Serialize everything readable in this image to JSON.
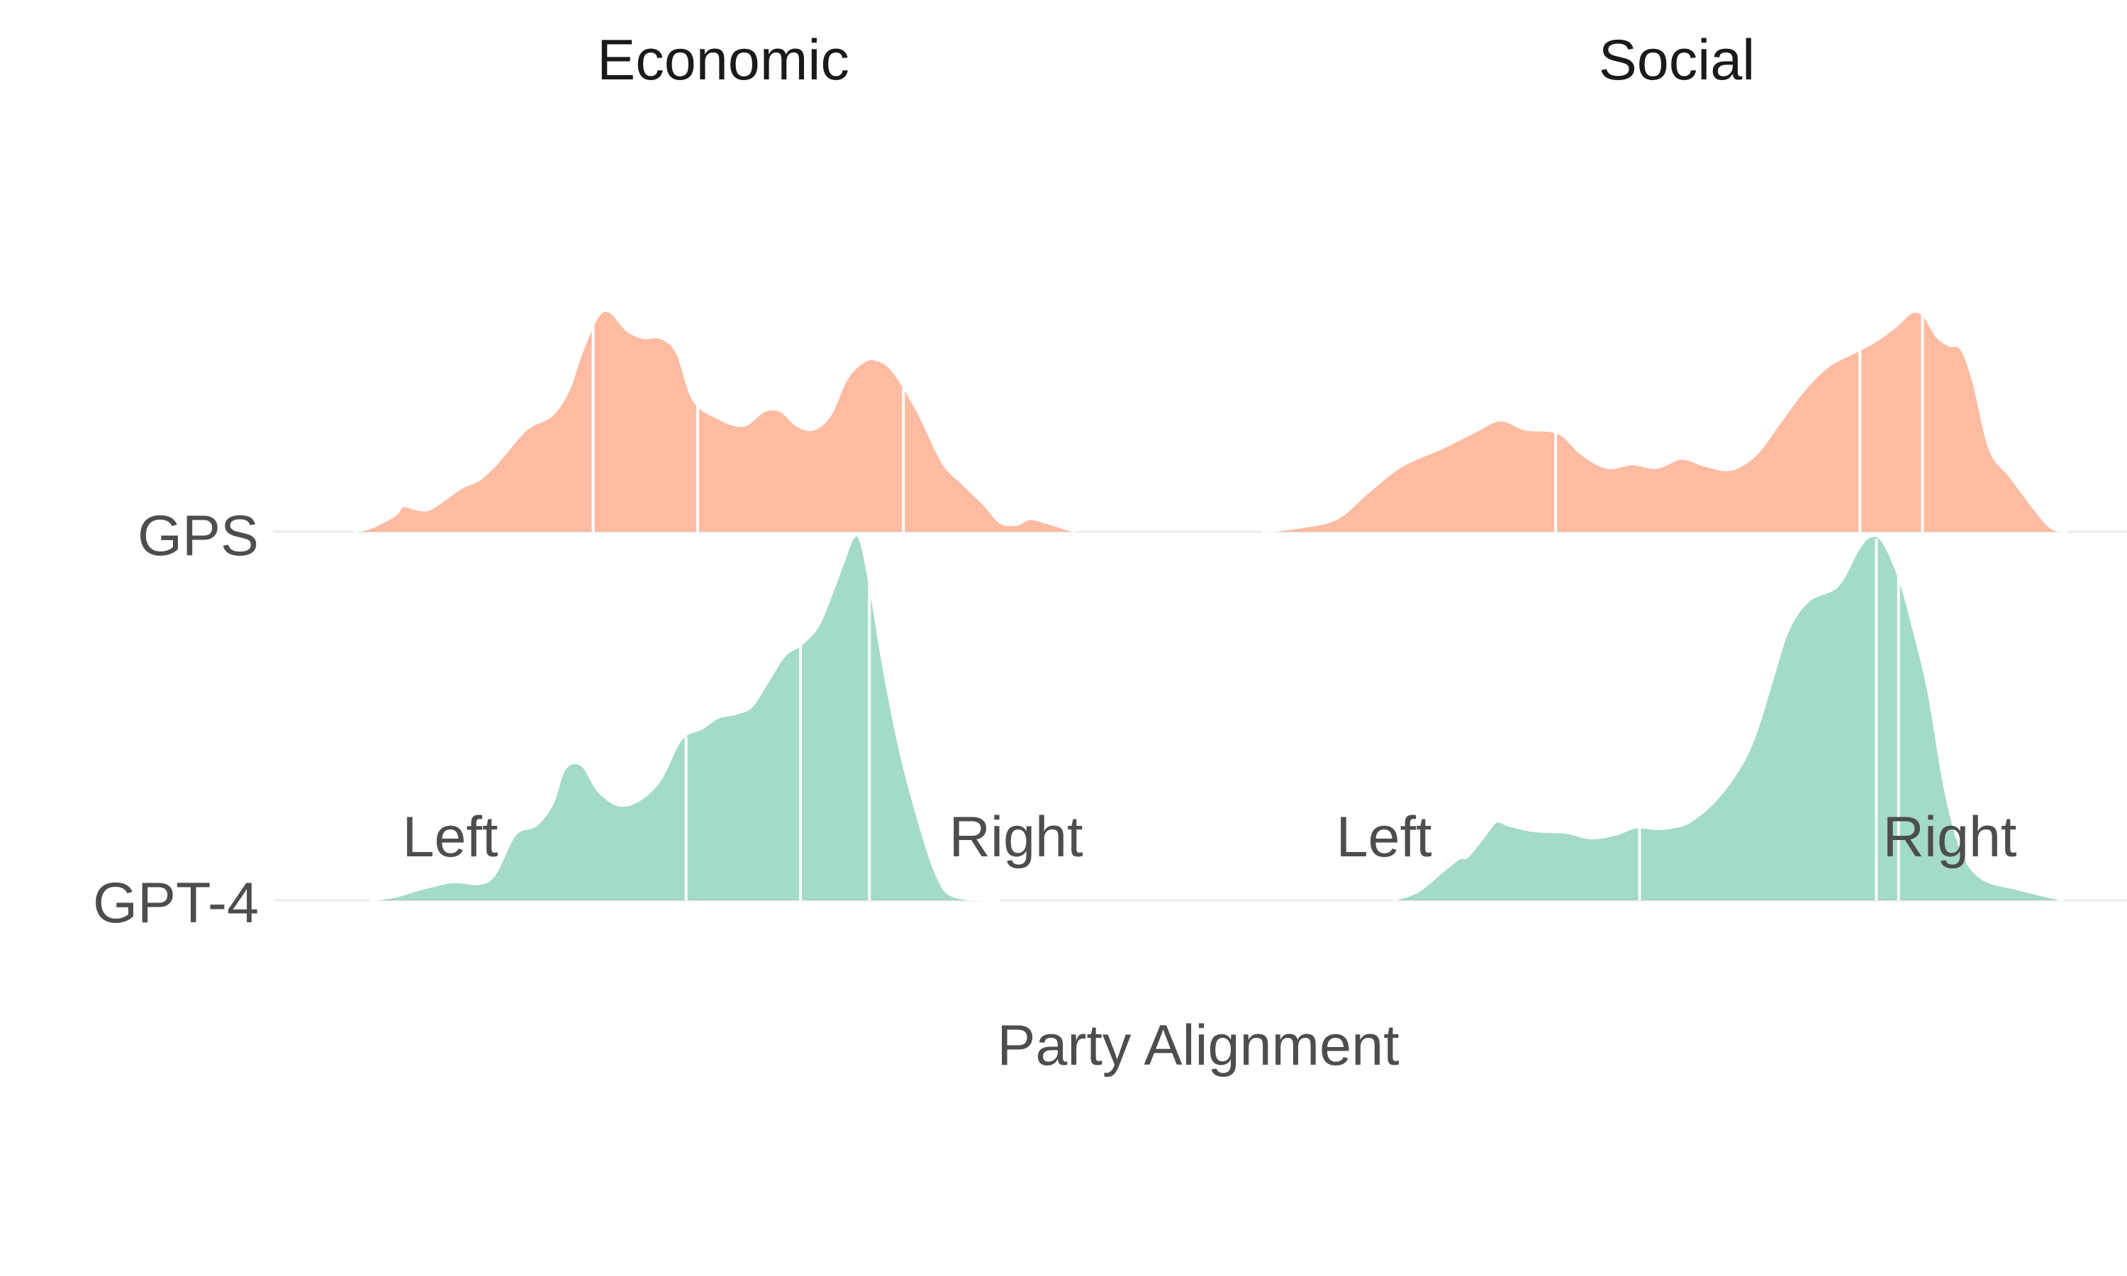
{
  "chart_data": {
    "type": "ridgeline",
    "xlabel": "Party Alignment",
    "ylabel": "",
    "xlim": [
      0,
      1
    ],
    "rows": [
      "GPS",
      "GPT-4"
    ],
    "colors": {
      "GPS": "#fc8d62",
      "GPT-4": "#66c2a5"
    },
    "fill_opacity": 0.6,
    "panels": [
      {
        "title": "Economic",
        "annotations": {
          "left": "Left",
          "right": "Right"
        },
        "series": [
          {
            "name": "GPS",
            "quantiles": [
              0.339,
              0.465,
              0.713
            ],
            "density": [
              [
                0.05,
                0
              ],
              [
                0.07,
                0.02
              ],
              [
                0.1,
                0.09
              ],
              [
                0.11,
                0.14
              ],
              [
                0.13,
                0.12
              ],
              [
                0.145,
                0.13
              ],
              [
                0.18,
                0.24
              ],
              [
                0.2,
                0.28
              ],
              [
                0.22,
                0.36
              ],
              [
                0.25,
                0.52
              ],
              [
                0.265,
                0.58
              ],
              [
                0.29,
                0.64
              ],
              [
                0.31,
                0.78
              ],
              [
                0.325,
                0.98
              ],
              [
                0.345,
                1.18
              ],
              [
                0.36,
                1.2
              ],
              [
                0.38,
                1.1
              ],
              [
                0.4,
                1.06
              ],
              [
                0.42,
                1.06
              ],
              [
                0.44,
                0.98
              ],
              [
                0.46,
                0.72
              ],
              [
                0.49,
                0.62
              ],
              [
                0.52,
                0.58
              ],
              [
                0.545,
                0.66
              ],
              [
                0.565,
                0.66
              ],
              [
                0.585,
                0.58
              ],
              [
                0.605,
                0.56
              ],
              [
                0.625,
                0.64
              ],
              [
                0.645,
                0.84
              ],
              [
                0.665,
                0.93
              ],
              [
                0.68,
                0.94
              ],
              [
                0.7,
                0.88
              ],
              [
                0.73,
                0.66
              ],
              [
                0.76,
                0.38
              ],
              [
                0.785,
                0.26
              ],
              [
                0.81,
                0.15
              ],
              [
                0.83,
                0.05
              ],
              [
                0.85,
                0.04
              ],
              [
                0.865,
                0.07
              ],
              [
                0.885,
                0.05
              ],
              [
                0.92,
                0
              ]
            ]
          },
          {
            "name": "GPT-4",
            "quantiles": [
              0.451,
              0.589,
              0.672
            ],
            "density": [
              [
                0.07,
                0
              ],
              [
                0.1,
                0.02
              ],
              [
                0.13,
                0.06
              ],
              [
                0.17,
                0.1
              ],
              [
                0.2,
                0.09
              ],
              [
                0.22,
                0.14
              ],
              [
                0.245,
                0.36
              ],
              [
                0.27,
                0.41
              ],
              [
                0.29,
                0.53
              ],
              [
                0.305,
                0.72
              ],
              [
                0.325,
                0.74
              ],
              [
                0.345,
                0.6
              ],
              [
                0.37,
                0.52
              ],
              [
                0.395,
                0.55
              ],
              [
                0.42,
                0.66
              ],
              [
                0.445,
                0.88
              ],
              [
                0.47,
                0.94
              ],
              [
                0.49,
                1.0
              ],
              [
                0.51,
                1.02
              ],
              [
                0.53,
                1.06
              ],
              [
                0.55,
                1.2
              ],
              [
                0.57,
                1.34
              ],
              [
                0.59,
                1.4
              ],
              [
                0.61,
                1.5
              ],
              [
                0.625,
                1.66
              ],
              [
                0.64,
                1.84
              ],
              [
                0.652,
                1.98
              ],
              [
                0.662,
                1.96
              ],
              [
                0.675,
                1.66
              ],
              [
                0.69,
                1.25
              ],
              [
                0.71,
                0.8
              ],
              [
                0.735,
                0.38
              ],
              [
                0.755,
                0.12
              ],
              [
                0.775,
                0.02
              ],
              [
                0.83,
                0
              ]
            ]
          }
        ]
      },
      {
        "title": "Social",
        "annotations": {
          "left": "Left",
          "right": "Right"
        },
        "series": [
          {
            "name": "GPS",
            "quantiles": [
              0.357,
              0.727,
              0.803
            ],
            "density": [
              [
                0.0,
                0
              ],
              [
                0.04,
                0.02
              ],
              [
                0.09,
                0.07
              ],
              [
                0.13,
                0.22
              ],
              [
                0.17,
                0.36
              ],
              [
                0.22,
                0.46
              ],
              [
                0.26,
                0.55
              ],
              [
                0.29,
                0.61
              ],
              [
                0.32,
                0.56
              ],
              [
                0.36,
                0.54
              ],
              [
                0.39,
                0.42
              ],
              [
                0.42,
                0.35
              ],
              [
                0.45,
                0.37
              ],
              [
                0.48,
                0.35
              ],
              [
                0.51,
                0.4
              ],
              [
                0.54,
                0.36
              ],
              [
                0.57,
                0.34
              ],
              [
                0.6,
                0.42
              ],
              [
                0.63,
                0.6
              ],
              [
                0.66,
                0.78
              ],
              [
                0.69,
                0.91
              ],
              [
                0.72,
                0.98
              ],
              [
                0.745,
                1.04
              ],
              [
                0.77,
                1.12
              ],
              [
                0.79,
                1.2
              ],
              [
                0.805,
                1.18
              ],
              [
                0.82,
                1.07
              ],
              [
                0.835,
                1.02
              ],
              [
                0.85,
                1.0
              ],
              [
                0.865,
                0.82
              ],
              [
                0.885,
                0.45
              ],
              [
                0.91,
                0.3
              ],
              [
                0.94,
                0.12
              ],
              [
                0.96,
                0.02
              ],
              [
                0.98,
                0
              ]
            ]
          },
          {
            "name": "GPT-4",
            "quantiles": [
              0.459,
              0.747,
              0.774
            ],
            "density": [
              [
                0.16,
                0
              ],
              [
                0.19,
                0.05
              ],
              [
                0.22,
                0.16
              ],
              [
                0.24,
                0.23
              ],
              [
                0.25,
                0.24
              ],
              [
                0.27,
                0.35
              ],
              [
                0.285,
                0.43
              ],
              [
                0.3,
                0.41
              ],
              [
                0.33,
                0.38
              ],
              [
                0.37,
                0.37
              ],
              [
                0.4,
                0.34
              ],
              [
                0.43,
                0.36
              ],
              [
                0.455,
                0.4
              ],
              [
                0.48,
                0.39
              ],
              [
                0.5,
                0.4
              ],
              [
                0.52,
                0.43
              ],
              [
                0.55,
                0.54
              ],
              [
                0.58,
                0.72
              ],
              [
                0.6,
                0.91
              ],
              [
                0.62,
                1.2
              ],
              [
                0.64,
                1.48
              ],
              [
                0.665,
                1.64
              ],
              [
                0.7,
                1.72
              ],
              [
                0.725,
                1.92
              ],
              [
                0.74,
                1.99
              ],
              [
                0.755,
                1.96
              ],
              [
                0.775,
                1.76
              ],
              [
                0.79,
                1.52
              ],
              [
                0.81,
                1.15
              ],
              [
                0.83,
                0.62
              ],
              [
                0.85,
                0.28
              ],
              [
                0.875,
                0.12
              ],
              [
                0.92,
                0.06
              ],
              [
                0.975,
                0
              ]
            ]
          }
        ]
      }
    ]
  }
}
